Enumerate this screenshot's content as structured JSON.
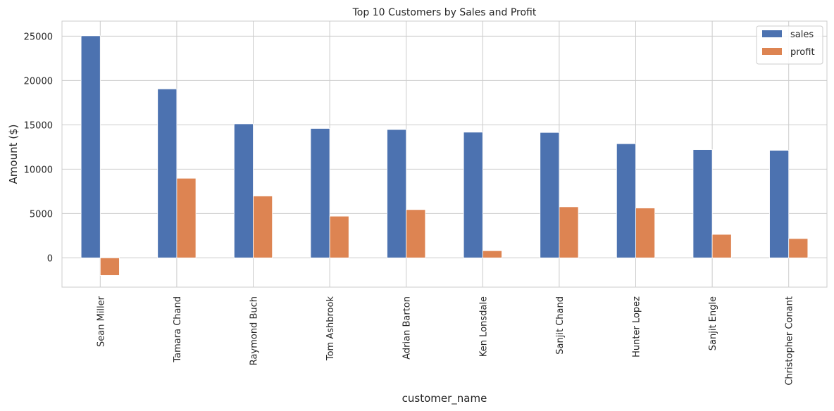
{
  "chart_data": {
    "type": "bar",
    "title": "Top 10 Customers by Sales and Profit",
    "xlabel": "customer_name",
    "ylabel": "Amount ($)",
    "categories": [
      "Sean Miller",
      "Tamara Chand",
      "Raymond Buch",
      "Tom Ashbrook",
      "Adrian Barton",
      "Ken Lonsdale",
      "Sanjit Chand",
      "Hunter Lopez",
      "Sanjit Engle",
      "Christopher Conant"
    ],
    "series": [
      {
        "name": "sales",
        "color": "#4c72b0",
        "values": [
          25043,
          19052,
          15117,
          14596,
          14474,
          14175,
          14142,
          12873,
          12209,
          12129
        ]
      },
      {
        "name": "profit",
        "color": "#dd8452",
        "values": [
          -1981,
          8981,
          6976,
          4703,
          5445,
          807,
          5757,
          5623,
          2650,
          2177
        ]
      }
    ],
    "ylim": [
      -3300,
      26700
    ],
    "yticks": [
      0,
      5000,
      10000,
      15000,
      20000,
      25000
    ],
    "ytick_labels": [
      "0",
      "5000",
      "10000",
      "15000",
      "20000",
      "25000"
    ],
    "grid": true,
    "legend_position": "top-right"
  }
}
